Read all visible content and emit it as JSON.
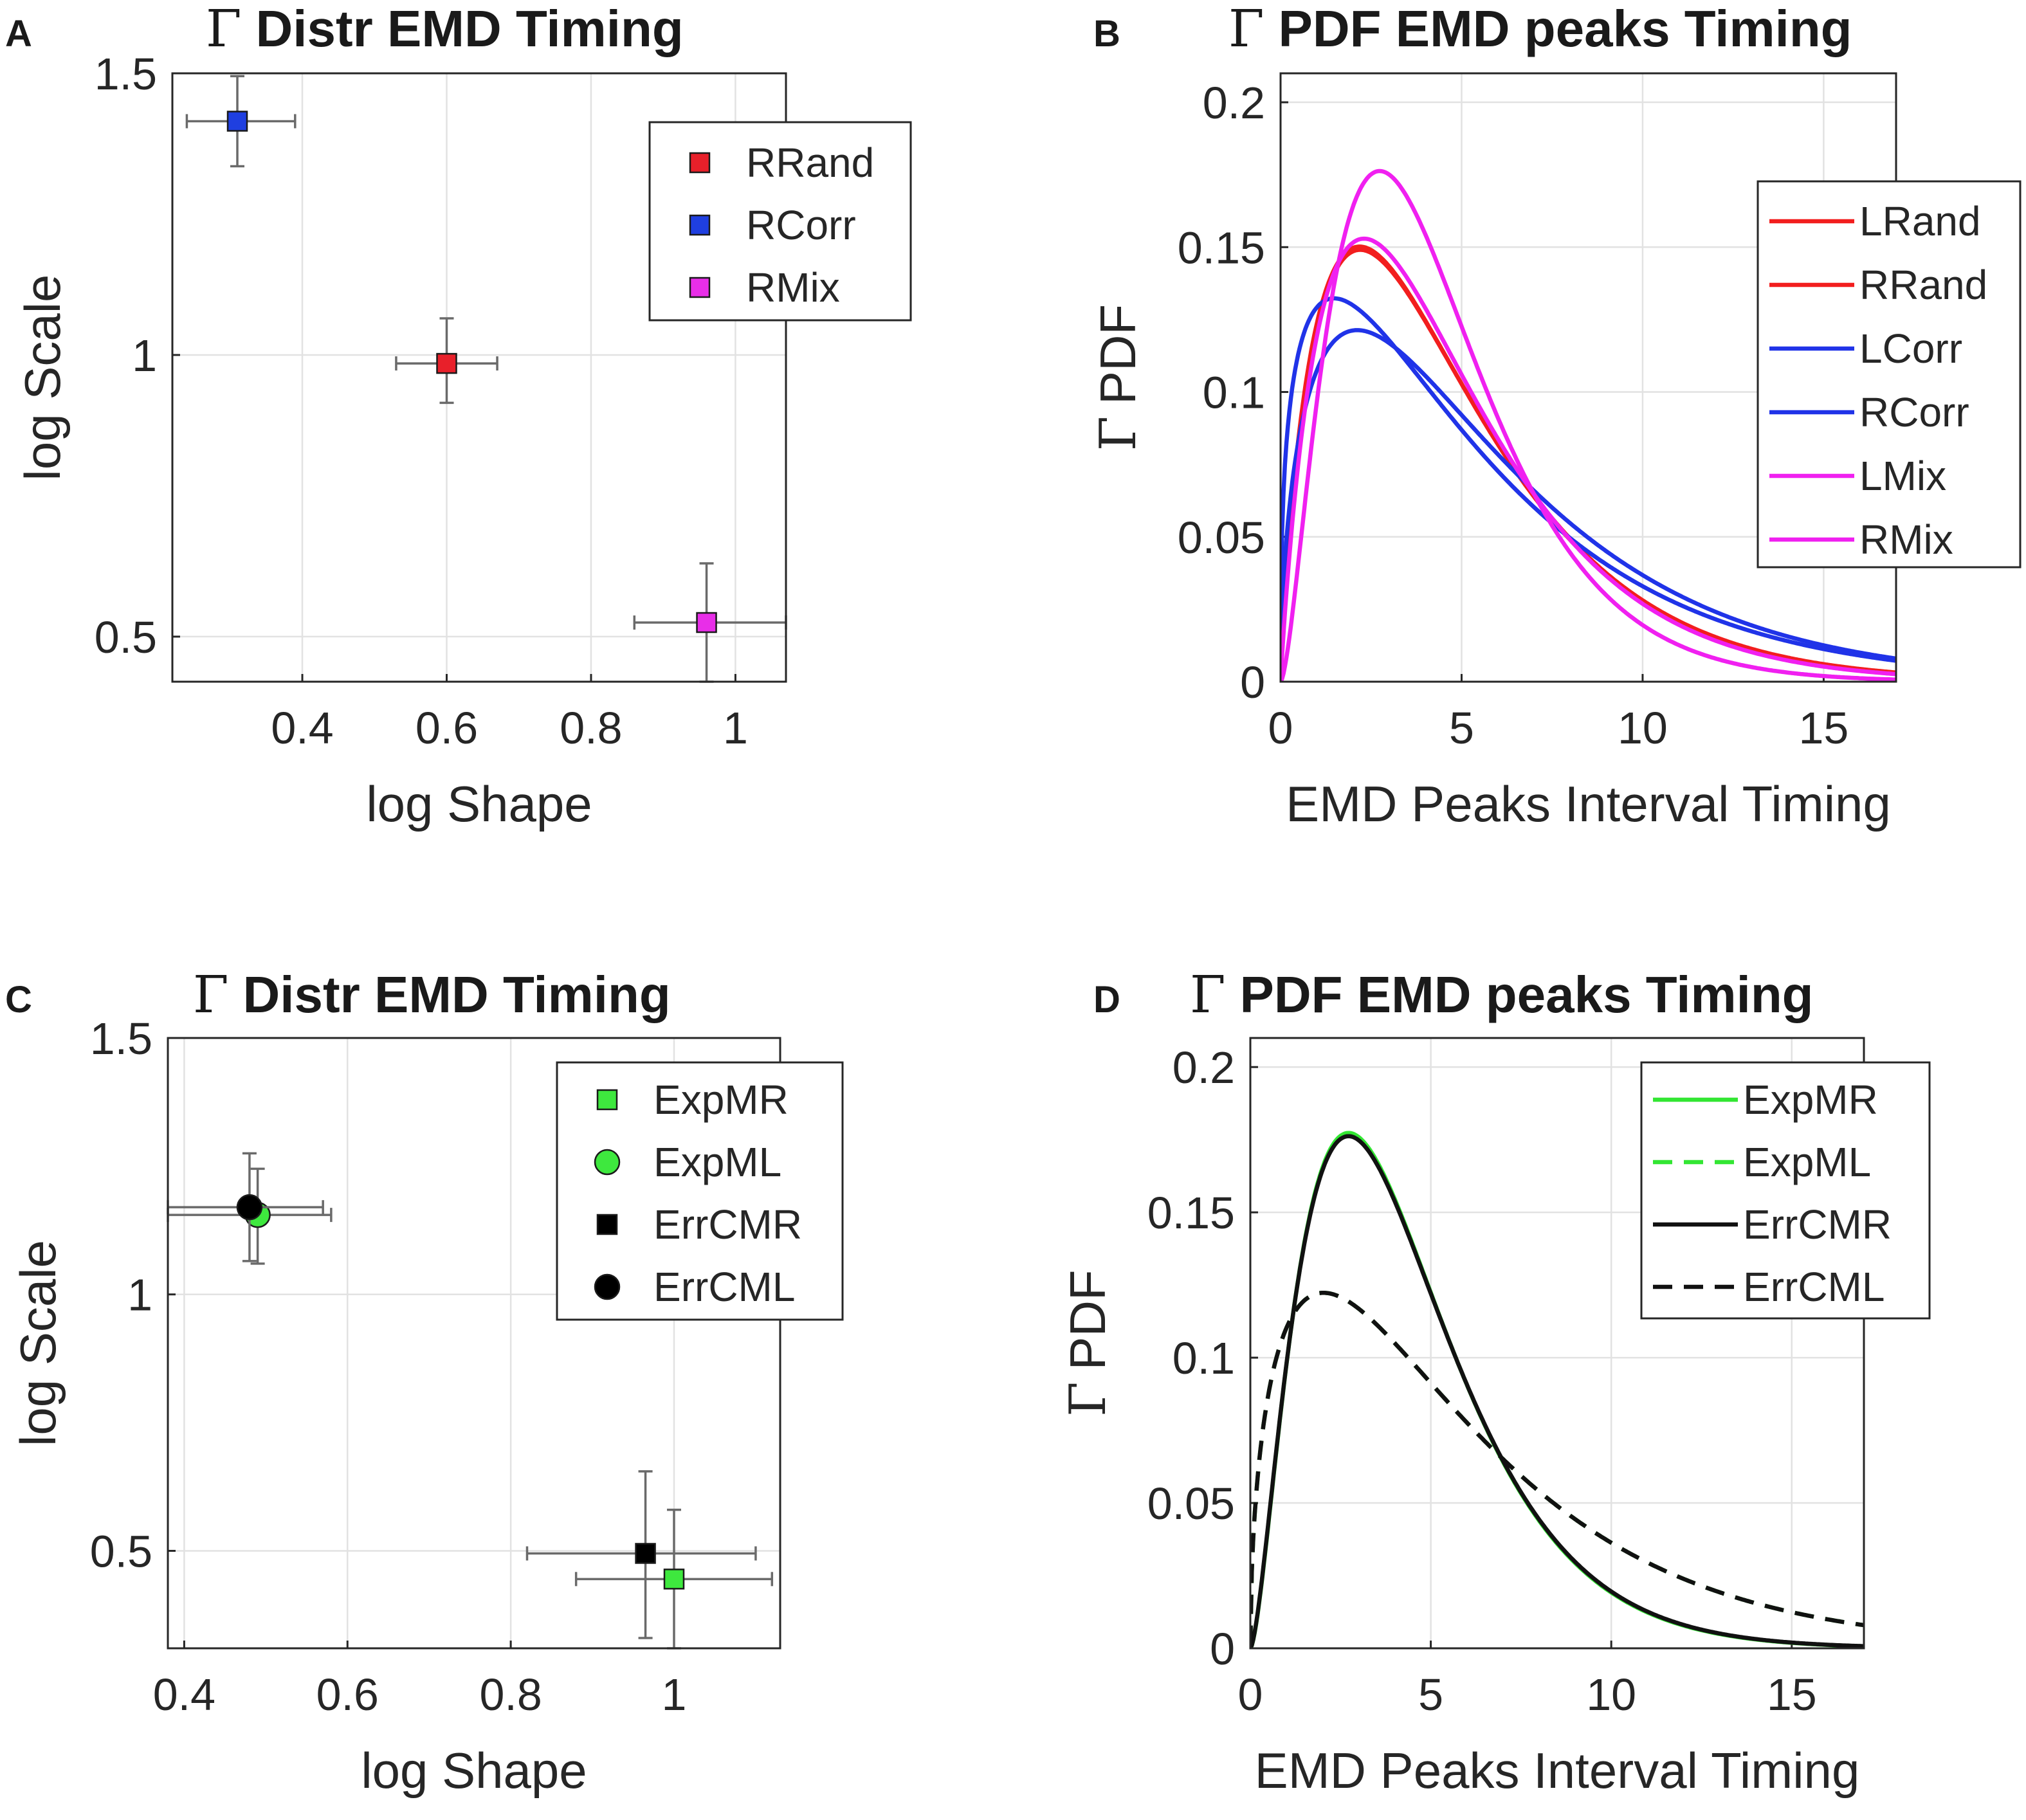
{
  "panels": [
    {
      "letter": "A",
      "title_symbol": "Γ",
      "title": "Distr EMD Timing",
      "xlabel": "log Shape",
      "ylabel": "log Scale",
      "xtick_labels": [
        "0.4",
        "0.6",
        "0.8",
        "1"
      ],
      "ytick_labels": [
        "0.5",
        "1",
        "1.5"
      ],
      "legend": [
        "RRand",
        "RCorr",
        "RMix"
      ]
    },
    {
      "letter": "B",
      "title_symbol": "Γ",
      "title": "PDF EMD peaks Timing",
      "xlabel": "EMD Peaks Interval Timing",
      "ylabel_symbol": "Γ",
      "ylabel": "PDF",
      "xtick_labels": [
        "0",
        "5",
        "10",
        "15"
      ],
      "ytick_labels": [
        "0",
        "0.05",
        "0.1",
        "0.15",
        "0.2"
      ],
      "legend": [
        "LRand",
        "RRand",
        "LCorr",
        "RCorr",
        "LMix",
        "RMix"
      ]
    },
    {
      "letter": "C",
      "title_symbol": "Γ",
      "title": "Distr EMD Timing",
      "xlabel": "log Shape",
      "ylabel": "log Scale",
      "xtick_labels": [
        "0.4",
        "0.6",
        "0.8",
        "1"
      ],
      "ytick_labels": [
        "0.5",
        "1",
        "1.5"
      ],
      "legend": [
        "ExpMR",
        "ExpML",
        "ErrCMR",
        "ErrCML"
      ]
    },
    {
      "letter": "D",
      "title_symbol": "Γ",
      "title": "PDF EMD peaks Timing",
      "xlabel": "EMD Peaks Interval Timing",
      "ylabel_symbol": "Γ",
      "ylabel": "PDF",
      "xtick_labels": [
        "0",
        "5",
        "10",
        "15"
      ],
      "ytick_labels": [
        "0",
        "0.05",
        "0.1",
        "0.15",
        "0.2"
      ],
      "legend": [
        "ExpMR",
        "ExpML",
        "ErrCMR",
        "ErrCML"
      ]
    }
  ],
  "chart_data": [
    {
      "panel": "A",
      "type": "scatter",
      "title": "Γ Distr EMD Timing",
      "xlabel": "log Shape",
      "ylabel": "log Scale",
      "xlim": [
        0.22,
        1.07
      ],
      "ylim": [
        0.42,
        1.5
      ],
      "xticks": [
        0.4,
        0.6,
        0.8,
        1
      ],
      "yticks": [
        0.5,
        1,
        1.5
      ],
      "grid": true,
      "legend_position": "top-right",
      "series": [
        {
          "name": "RRand",
          "marker": "square",
          "color": "#e8202a",
          "x": 0.6,
          "y": 0.985,
          "xerr": [
            0.53,
            0.67
          ],
          "yerr": [
            0.915,
            1.065
          ]
        },
        {
          "name": "RCorr",
          "marker": "square",
          "color": "#1f3fe0",
          "x": 0.31,
          "y": 1.415,
          "xerr": [
            0.24,
            0.39
          ],
          "yerr": [
            1.335,
            1.495
          ]
        },
        {
          "name": "RMix",
          "marker": "square",
          "color": "#e82ee8",
          "x": 0.96,
          "y": 0.525,
          "xerr": [
            0.86,
            1.07
          ],
          "yerr": [
            0.42,
            0.63
          ]
        }
      ]
    },
    {
      "panel": "B",
      "type": "line",
      "title": "Γ PDF EMD peaks Timing",
      "xlabel": "EMD Peaks Interval Timing",
      "ylabel": "Γ PDF",
      "xlim": [
        0,
        17
      ],
      "ylim": [
        0,
        0.21
      ],
      "xticks": [
        0,
        5,
        10,
        15
      ],
      "yticks": [
        0,
        0.05,
        0.1,
        0.15,
        0.2
      ],
      "grid": true,
      "legend_position": "top-right",
      "series": [
        {
          "name": "LRand",
          "color": "#f21e1e",
          "dash": "solid",
          "shape": 1.82,
          "scale": 2.66
        },
        {
          "name": "RRand",
          "color": "#f21e1e",
          "dash": "solid",
          "shape": 1.82,
          "scale": 2.68
        },
        {
          "name": "LCorr",
          "color": "#2033e8",
          "dash": "solid",
          "shape": 1.55,
          "scale": 3.85
        },
        {
          "name": "RCorr",
          "color": "#2033e8",
          "dash": "solid",
          "shape": 1.36,
          "scale": 4.1
        },
        {
          "name": "LMix",
          "color": "#f020f0",
          "dash": "solid",
          "shape": 1.93,
          "scale": 2.48
        },
        {
          "name": "RMix",
          "color": "#f020f0",
          "dash": "solid",
          "shape": 2.62,
          "scale": 1.69
        }
      ]
    },
    {
      "panel": "C",
      "type": "scatter",
      "title": "Γ Distr EMD Timing",
      "xlabel": "log Shape",
      "ylabel": "log Scale",
      "xlim": [
        0.38,
        1.13
      ],
      "ylim": [
        0.31,
        1.5
      ],
      "xticks": [
        0.4,
        0.6,
        0.8,
        1
      ],
      "yticks": [
        0.5,
        1,
        1.5
      ],
      "grid": true,
      "legend_position": "top-right",
      "series": [
        {
          "name": "ExpMR",
          "marker": "square",
          "color": "#3ee83e",
          "x": 1.0,
          "y": 0.445,
          "xerr": [
            0.88,
            1.12
          ],
          "yerr": [
            0.31,
            0.58
          ]
        },
        {
          "name": "ExpML",
          "marker": "circle",
          "color": "#3ee83e",
          "x": 0.49,
          "y": 1.155,
          "xerr": [
            0.38,
            0.58
          ],
          "yerr": [
            1.06,
            1.245
          ]
        },
        {
          "name": "ErrCMR",
          "marker": "square",
          "color": "#000000",
          "x": 0.965,
          "y": 0.495,
          "xerr": [
            0.82,
            1.1
          ],
          "yerr": [
            0.33,
            0.655
          ]
        },
        {
          "name": "ErrCML",
          "marker": "circle",
          "color": "#000000",
          "x": 0.48,
          "y": 1.17,
          "xerr": [
            0.38,
            0.57
          ],
          "yerr": [
            1.065,
            1.275
          ]
        }
      ]
    },
    {
      "panel": "D",
      "type": "line",
      "title": "Γ PDF EMD peaks Timing",
      "xlabel": "EMD Peaks Interval Timing",
      "ylabel": "Γ PDF",
      "xlim": [
        0,
        17
      ],
      "ylim": [
        0,
        0.21
      ],
      "xticks": [
        0,
        5,
        10,
        15
      ],
      "yticks": [
        0,
        0.05,
        0.1,
        0.15,
        0.2
      ],
      "grid": true,
      "legend_position": "top-right",
      "series": [
        {
          "name": "ExpMR",
          "color": "#33e633",
          "dash": "solid",
          "shape": 2.62,
          "scale": 1.68
        },
        {
          "name": "ExpML",
          "color": "#33e633",
          "dash": "dashed",
          "shape": 1.52,
          "scale": 3.9
        },
        {
          "name": "ErrCMR",
          "color": "#111111",
          "dash": "solid",
          "shape": 2.6,
          "scale": 1.7
        },
        {
          "name": "ErrCML",
          "color": "#111111",
          "dash": "dashed",
          "shape": 1.52,
          "scale": 3.9
        }
      ]
    }
  ]
}
